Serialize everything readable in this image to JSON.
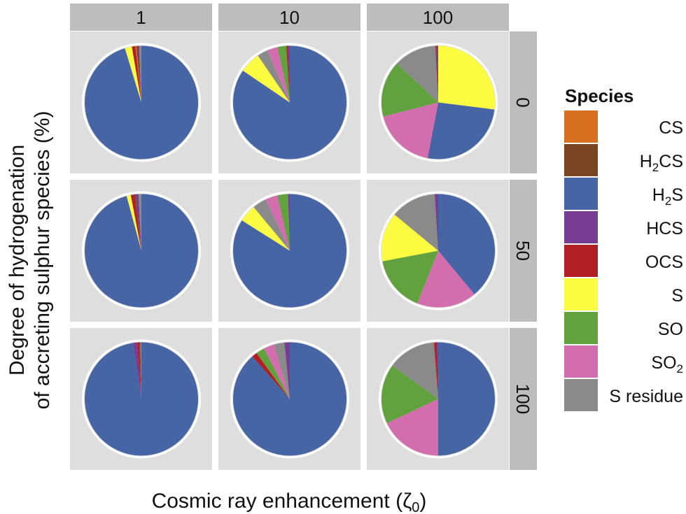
{
  "chart_data": {
    "type": "pie",
    "col_strip_labels": [
      "1",
      "10",
      "100"
    ],
    "row_strip_labels": [
      "0",
      "50",
      "100"
    ],
    "xlabel": "Cosmic ray enhancement (",
    "xlabel_symbol": "ζ",
    "xlabel_sub": "0",
    "xlabel_close": ")",
    "ylabel_line1": "Degree of hydrogenation",
    "ylabel_line2": "of accreting sulphur species (%)",
    "legend": {
      "title": "Species",
      "placement": "right",
      "entries": [
        {
          "key": "CS",
          "main": "CS",
          "sub": "",
          "tail": "",
          "color": "#D8711F"
        },
        {
          "key": "H2CS",
          "main": "H",
          "sub": "2",
          "tail": "CS",
          "color": "#7B4420"
        },
        {
          "key": "H2S",
          "main": "H",
          "sub": "2",
          "tail": "S",
          "color": "#4765A5"
        },
        {
          "key": "HCS",
          "main": "HCS",
          "sub": "",
          "tail": "",
          "color": "#773D93"
        },
        {
          "key": "OCS",
          "main": "OCS",
          "sub": "",
          "tail": "",
          "color": "#B11E24"
        },
        {
          "key": "S",
          "main": "S",
          "sub": "",
          "tail": "",
          "color": "#FBFC41"
        },
        {
          "key": "SO",
          "main": "SO",
          "sub": "",
          "tail": "",
          "color": "#62A23E"
        },
        {
          "key": "SO2",
          "main": "SO",
          "sub": "2",
          "tail": "",
          "color": "#D26EAE"
        },
        {
          "key": "S residue",
          "main": "S residue",
          "sub": "",
          "tail": "",
          "color": "#8A8A8A"
        }
      ]
    },
    "panels": [
      {
        "row": "0",
        "col": "1",
        "slices": [
          {
            "species": "H2S",
            "value": 95.3
          },
          {
            "species": "S",
            "value": 2.0
          },
          {
            "species": "OCS",
            "value": 1.0
          },
          {
            "species": "CS",
            "value": 0.3
          },
          {
            "species": "H2CS",
            "value": 0.5
          },
          {
            "species": "HCS",
            "value": 0.3
          },
          {
            "species": "S residue",
            "value": 0.6
          }
        ]
      },
      {
        "row": "0",
        "col": "10",
        "slices": [
          {
            "species": "H2S",
            "value": 84.5
          },
          {
            "species": "S",
            "value": 6.0
          },
          {
            "species": "S residue",
            "value": 3.0
          },
          {
            "species": "SO2",
            "value": 3.0
          },
          {
            "species": "SO",
            "value": 2.5
          },
          {
            "species": "OCS",
            "value": 0.5
          },
          {
            "species": "HCS",
            "value": 0.5
          }
        ]
      },
      {
        "row": "0",
        "col": "100",
        "slices": [
          {
            "species": "S",
            "value": 27.0
          },
          {
            "species": "H2S",
            "value": 26.0
          },
          {
            "species": "SO2",
            "value": 18.0
          },
          {
            "species": "SO",
            "value": 16.0
          },
          {
            "species": "S residue",
            "value": 12.2
          },
          {
            "species": "OCS",
            "value": 0.3
          },
          {
            "species": "HCS",
            "value": 0.5
          }
        ]
      },
      {
        "row": "50",
        "col": "1",
        "slices": [
          {
            "species": "H2S",
            "value": 95.8
          },
          {
            "species": "S",
            "value": 1.2
          },
          {
            "species": "OCS",
            "value": 1.0
          },
          {
            "species": "H2CS",
            "value": 0.4
          },
          {
            "species": "HCS",
            "value": 0.8
          },
          {
            "species": "S residue",
            "value": 0.8
          }
        ]
      },
      {
        "row": "50",
        "col": "10",
        "slices": [
          {
            "species": "H2S",
            "value": 84.0
          },
          {
            "species": "S",
            "value": 5.0
          },
          {
            "species": "S residue",
            "value": 4.0
          },
          {
            "species": "SO2",
            "value": 3.5
          },
          {
            "species": "SO",
            "value": 3.0
          },
          {
            "species": "HCS",
            "value": 0.5
          }
        ]
      },
      {
        "row": "50",
        "col": "100",
        "slices": [
          {
            "species": "H2S",
            "value": 39.0
          },
          {
            "species": "SO2",
            "value": 17.0
          },
          {
            "species": "SO",
            "value": 16.0
          },
          {
            "species": "S",
            "value": 14.0
          },
          {
            "species": "S residue",
            "value": 13.0
          },
          {
            "species": "HCS",
            "value": 1.0
          }
        ]
      },
      {
        "row": "100",
        "col": "1",
        "slices": [
          {
            "species": "H2S",
            "value": 97.6
          },
          {
            "species": "HCS",
            "value": 1.2
          },
          {
            "species": "OCS",
            "value": 0.6
          },
          {
            "species": "H2CS",
            "value": 0.3
          },
          {
            "species": "S residue",
            "value": 0.3
          }
        ]
      },
      {
        "row": "100",
        "col": "10",
        "slices": [
          {
            "species": "H2S",
            "value": 88.5
          },
          {
            "species": "OCS",
            "value": 1.5
          },
          {
            "species": "SO",
            "value": 2.5
          },
          {
            "species": "SO2",
            "value": 3.0
          },
          {
            "species": "S residue",
            "value": 3.0
          },
          {
            "species": "HCS",
            "value": 1.5
          }
        ]
      },
      {
        "row": "100",
        "col": "100",
        "slices": [
          {
            "species": "H2S",
            "value": 50.0
          },
          {
            "species": "SO2",
            "value": 18.0
          },
          {
            "species": "SO",
            "value": 17.0
          },
          {
            "species": "S residue",
            "value": 13.8
          },
          {
            "species": "OCS",
            "value": 0.8
          },
          {
            "species": "HCS",
            "value": 0.4
          }
        ]
      }
    ]
  }
}
